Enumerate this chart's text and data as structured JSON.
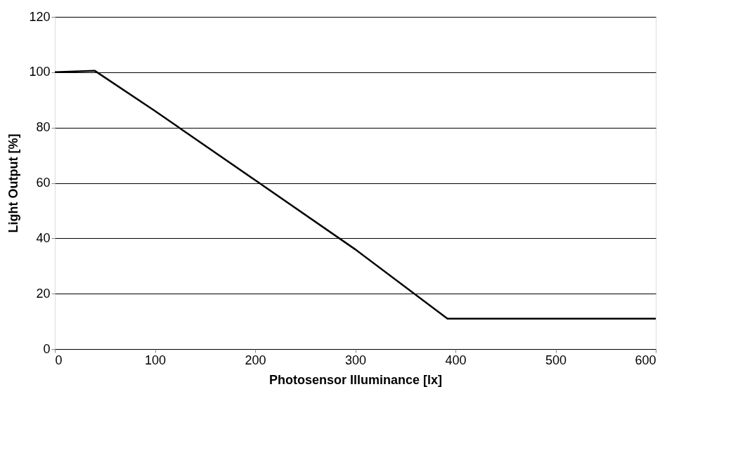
{
  "chart_data": {
    "type": "line",
    "xlabel": "Photosensor Illuminance [lx]",
    "ylabel": "Light Output [%]",
    "x": [
      0,
      40,
      100,
      200,
      300,
      392,
      600
    ],
    "series": [
      {
        "color": "#000000",
        "values": [
          100,
          100.5,
          86,
          61,
          36,
          11,
          11
        ]
      }
    ],
    "xlim": [
      0,
      600
    ],
    "xticks": [
      0,
      100,
      200,
      300,
      400,
      500,
      600
    ],
    "ylim": [
      0,
      120
    ],
    "yticks": [
      0,
      20,
      40,
      60,
      80,
      100,
      120
    ],
    "grid": "y",
    "marker": "none",
    "line_style": "solid"
  }
}
